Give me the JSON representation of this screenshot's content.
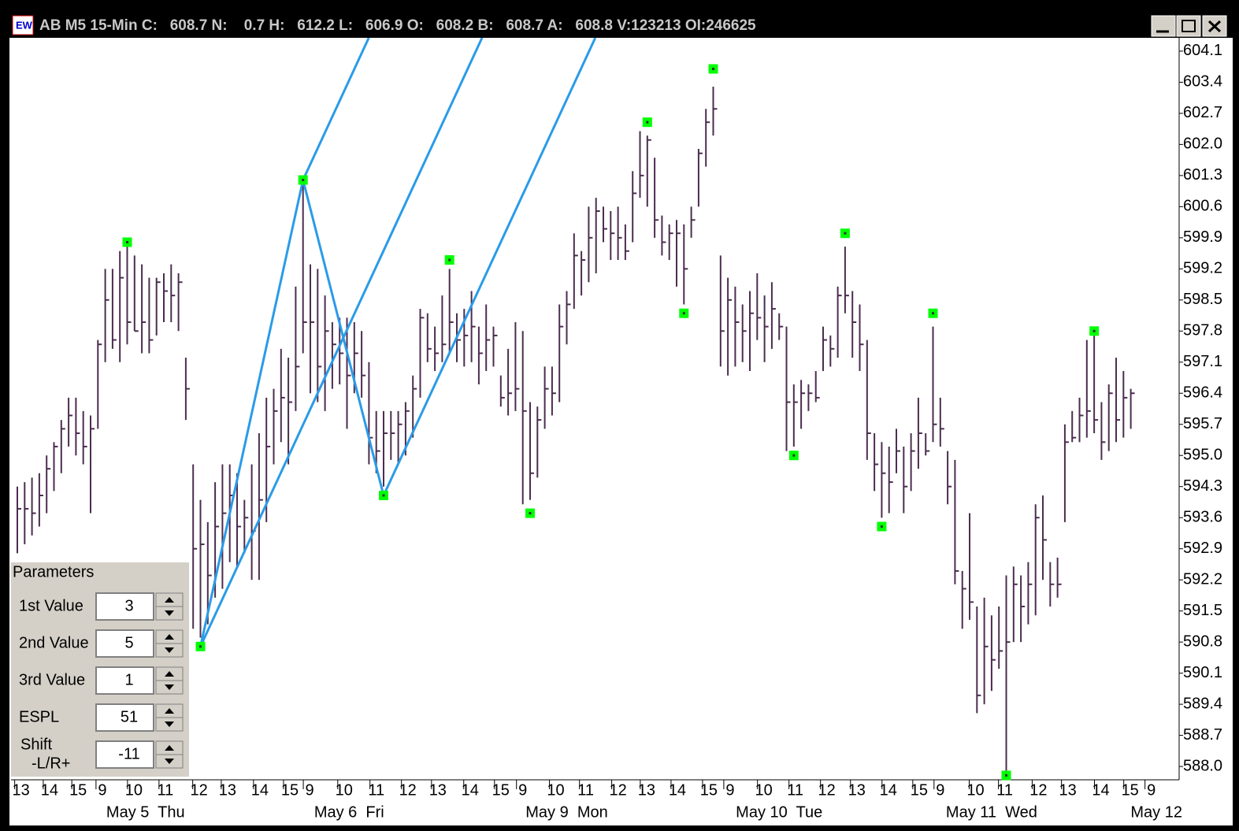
{
  "header": {
    "title": "AB M5 15-Min C:   608.7 N:    0.7 H:   612.2 L:   606.9 O:   608.2 B:   608.7 A:   608.8 V:123213 OI:246625"
  },
  "parameters": {
    "title": "Parameters",
    "fields": [
      {
        "label": [
          "1st Value"
        ],
        "value": "3"
      },
      {
        "label": [
          "2nd Value"
        ],
        "value": "5"
      },
      {
        "label": [
          "3rd Value"
        ],
        "value": "1"
      },
      {
        "label": [
          "ESPL"
        ],
        "value": "51"
      },
      {
        "label": [
          "Shift",
          "-L/R+"
        ],
        "value": "-11"
      }
    ]
  },
  "chart_data": {
    "type": "ohlc",
    "color": "#4b2d4f",
    "pitchfork_color": "#2a9be8",
    "high": [
      594.3,
      594.4,
      594.5,
      594.6,
      595.0,
      595.3,
      595.8,
      596.3,
      596.3,
      596.0,
      595.9,
      597.6,
      599.2,
      599.2,
      599.6,
      599.7,
      599.5,
      599.3,
      599.0,
      599.0,
      599.1,
      599.3,
      599.1,
      597.2,
      594.8,
      594.0,
      593.5,
      594.4,
      594.8,
      594.8,
      594.6,
      594.0,
      594.8,
      595.5,
      596.3,
      596.5,
      597.4,
      597.2,
      598.8,
      601.1,
      599.3,
      599.2,
      598.6,
      598.0,
      598.1,
      598.1,
      598.0,
      597.8,
      597.1,
      596.0,
      596.0,
      596.0,
      596.0,
      596.2,
      596.8,
      598.3,
      598.2,
      597.9,
      598.6,
      599.2,
      598.2,
      598.3,
      598.7,
      597.9,
      598.4,
      597.9,
      596.8,
      597.4,
      598.0,
      597.8,
      596.2,
      596.1,
      597.0,
      597.0,
      598.4,
      598.7,
      600.0,
      599.6,
      600.6,
      600.8,
      600.6,
      600.5,
      600.6,
      600.2,
      601.4,
      602.3,
      602.2,
      601.7,
      600.4,
      600.2,
      600.3,
      600.2,
      600.6,
      601.9,
      602.8,
      603.3,
      599.5,
      599.0,
      598.8,
      598.4,
      598.7,
      599.1,
      598.6,
      598.9,
      598.2,
      597.9,
      596.6,
      596.7,
      596.6,
      596.9,
      597.9,
      597.7,
      598.8,
      599.7,
      598.7,
      598.4,
      597.6,
      595.5,
      595.3,
      595.2,
      595.6,
      595.2,
      595.5,
      596.3,
      595.5,
      597.9,
      596.3,
      595.1,
      594.9,
      592.4,
      593.7,
      591.6,
      591.8,
      591.4,
      591.6,
      592.3,
      592.5,
      592.3,
      592.6,
      593.9,
      594.1,
      592.6,
      592.7,
      595.7,
      596.0,
      596.3,
      597.6,
      597.7,
      596.2,
      596.6,
      597.2,
      596.9,
      596.5
    ],
    "low": [
      592.8,
      593.0,
      593.2,
      593.4,
      593.7,
      594.2,
      594.6,
      595.2,
      595.0,
      594.8,
      593.7,
      595.6,
      597.1,
      597.4,
      597.1,
      597.5,
      597.8,
      597.3,
      597.3,
      597.7,
      598.0,
      598.0,
      597.8,
      595.8,
      591.1,
      590.9,
      591.2,
      591.8,
      592.0,
      592.6,
      592.5,
      592.8,
      592.2,
      592.2,
      593.5,
      594.8,
      595.3,
      594.8,
      596.0,
      597.3,
      596.4,
      596.2,
      596.0,
      596.5,
      596.6,
      595.6,
      596.4,
      596.3,
      594.8,
      594.6,
      594.3,
      594.9,
      594.8,
      595.0,
      595.4,
      596.3,
      597.1,
      596.9,
      597.1,
      597.3,
      597.1,
      597.0,
      597.1,
      596.6,
      596.9,
      597.0,
      596.1,
      595.9,
      596.0,
      593.9,
      594.0,
      594.5,
      595.6,
      595.9,
      596.2,
      597.5,
      598.3,
      598.6,
      598.9,
      599.1,
      599.8,
      599.4,
      599.4,
      599.4,
      599.8,
      600.8,
      600.6,
      599.9,
      599.5,
      599.4,
      598.8,
      598.4,
      599.9,
      600.6,
      601.5,
      602.2,
      597.0,
      596.8,
      597.0,
      597.1,
      596.9,
      597.6,
      597.1,
      597.4,
      597.6,
      595.1,
      595.2,
      595.6,
      596.0,
      596.2,
      596.9,
      597.0,
      597.2,
      598.2,
      597.2,
      596.9,
      594.9,
      594.2,
      593.6,
      593.7,
      594.6,
      593.7,
      594.2,
      594.7,
      595.0,
      595.3,
      595.2,
      593.9,
      592.1,
      591.1,
      591.3,
      589.2,
      589.4,
      589.7,
      590.2,
      587.9,
      590.8,
      590.8,
      591.2,
      591.4,
      592.2,
      591.6,
      591.8,
      593.5,
      595.3,
      595.3,
      595.4,
      595.5,
      594.9,
      595.1,
      595.3,
      595.4,
      595.6
    ],
    "close": [
      593.8,
      593.8,
      593.7,
      594.1,
      594.7,
      595.2,
      595.6,
      595.9,
      595.5,
      595.2,
      595.6,
      597.5,
      598.5,
      597.6,
      599.0,
      598.0,
      597.8,
      598.0,
      597.6,
      598.9,
      598.7,
      598.6,
      598.9,
      596.5,
      592.9,
      593.0,
      592.3,
      593.4,
      593.7,
      594.1,
      593.4,
      593.6,
      593.3,
      594.0,
      595.2,
      596.0,
      596.3,
      596.2,
      597.0,
      598.0,
      598.0,
      597.0,
      597.8,
      597.5,
      597.3,
      596.8,
      597.3,
      596.8,
      595.4,
      595.1,
      595.5,
      595.5,
      595.7,
      596.0,
      596.5,
      598.1,
      597.4,
      597.3,
      597.5,
      598.0,
      597.6,
      597.7,
      597.9,
      597.3,
      597.6,
      597.7,
      596.3,
      596.4,
      596.5,
      596.0,
      594.6,
      595.8,
      596.5,
      596.4,
      597.9,
      598.4,
      599.5,
      599.4,
      599.9,
      600.5,
      600.1,
      600.0,
      599.9,
      599.6,
      600.9,
      601.3,
      602.1,
      600.3,
      599.8,
      600.0,
      600.0,
      599.2,
      600.3,
      601.8,
      602.5,
      602.8,
      597.8,
      598.5,
      598.0,
      597.8,
      598.2,
      598.1,
      597.9,
      598.3,
      597.9,
      596.2,
      596.2,
      596.4,
      596.4,
      596.3,
      597.6,
      597.4,
      598.6,
      598.6,
      598.0,
      597.5,
      595.5,
      594.8,
      594.6,
      594.4,
      595.1,
      594.3,
      595.1,
      595.5,
      595.1,
      595.7,
      595.6,
      594.3,
      592.4,
      592.0,
      591.7,
      589.6,
      590.7,
      590.4,
      590.6,
      590.8,
      592.1,
      591.6,
      592.1,
      593.6,
      593.1,
      592.1,
      592.1,
      595.3,
      595.4,
      595.9,
      596.0,
      595.8,
      595.3,
      596.4,
      595.8,
      596.3,
      596.4
    ],
    "pivots": {
      "color": "#00ff00",
      "x": [
        15,
        25,
        39,
        50,
        59,
        70,
        86,
        91,
        95,
        106,
        113,
        118,
        125,
        135,
        147
      ],
      "values": [
        599.8,
        590.7,
        601.2,
        594.1,
        599.4,
        593.7,
        602.5,
        598.2,
        603.7,
        595.0,
        600.0,
        593.4,
        598.2,
        587.8,
        597.8
      ]
    },
    "ylim": [
      587.7,
      604.4
    ],
    "yticks": [
      604.1,
      603.4,
      602.7,
      {
        "value": 602,
        "label": "602.0"
      },
      601.3,
      600.6,
      599.9,
      599.2,
      598.5,
      597.8,
      597.1,
      596.4,
      595.7,
      {
        "value": 595,
        "label": "595.0"
      },
      594.3,
      593.6,
      592.9,
      592.2,
      591.5,
      590.8,
      590.1,
      589.4,
      588.7,
      {
        "value": 588,
        "label": "588.0"
      }
    ],
    "xlim": [
      -0.86,
      158.6
    ],
    "xticks": [
      {
        "value": 0.5,
        "label": "13"
      },
      {
        "value": 4.4,
        "label": "14"
      },
      {
        "value": 8.3,
        "label": "15"
      },
      {
        "value": 11.6,
        "label": "9"
      },
      {
        "value": 15.9,
        "label": "10"
      },
      {
        "value": 20.2,
        "label": "11"
      },
      {
        "value": 24.8,
        "label": "12"
      },
      {
        "value": 28.7,
        "label": "13"
      },
      {
        "value": 33.1,
        "label": "14"
      },
      {
        "value": 37.2,
        "label": "15"
      },
      {
        "value": 39.9,
        "label": "9"
      },
      {
        "value": 44.6,
        "label": "10"
      },
      {
        "value": 49,
        "label": "11"
      },
      {
        "value": 53.3,
        "label": "12"
      },
      {
        "value": 57.4,
        "label": "13"
      },
      {
        "value": 61.8,
        "label": "14"
      },
      {
        "value": 66,
        "label": "15"
      },
      {
        "value": 69,
        "label": "9"
      },
      {
        "value": 73.5,
        "label": "10"
      },
      {
        "value": 77.6,
        "label": "11"
      },
      {
        "value": 82,
        "label": "12"
      },
      {
        "value": 85.9,
        "label": "13"
      },
      {
        "value": 90.1,
        "label": "14"
      },
      {
        "value": 94.4,
        "label": "15"
      },
      {
        "value": 97.3,
        "label": "9"
      },
      {
        "value": 101.9,
        "label": "10"
      },
      {
        "value": 106.2,
        "label": "11"
      },
      {
        "value": 110.5,
        "label": "12"
      },
      {
        "value": 114.6,
        "label": "13"
      },
      {
        "value": 118.9,
        "label": "14"
      },
      {
        "value": 123.1,
        "label": "15"
      },
      {
        "value": 126,
        "label": "9"
      },
      {
        "value": 130.8,
        "label": "10"
      },
      {
        "value": 134.8,
        "label": "11"
      },
      {
        "value": 139.4,
        "label": "12"
      },
      {
        "value": 143.4,
        "label": "13"
      },
      {
        "value": 147.9,
        "label": "14"
      },
      {
        "value": 151.9,
        "label": "15"
      },
      {
        "value": 154.8,
        "label": "9"
      }
    ],
    "day_ticks": [
      {
        "value": 17.5,
        "label": "May 5  Thu"
      },
      {
        "value": 45.3,
        "label": "May 6  Fri"
      },
      {
        "value": 75,
        "label": "May 9  Mon"
      },
      {
        "value": 104,
        "label": "May 10  Tue"
      },
      {
        "value": 133,
        "label": "May 11  Wed"
      },
      {
        "value": 155.5,
        "label": "May 12"
      }
    ]
  }
}
